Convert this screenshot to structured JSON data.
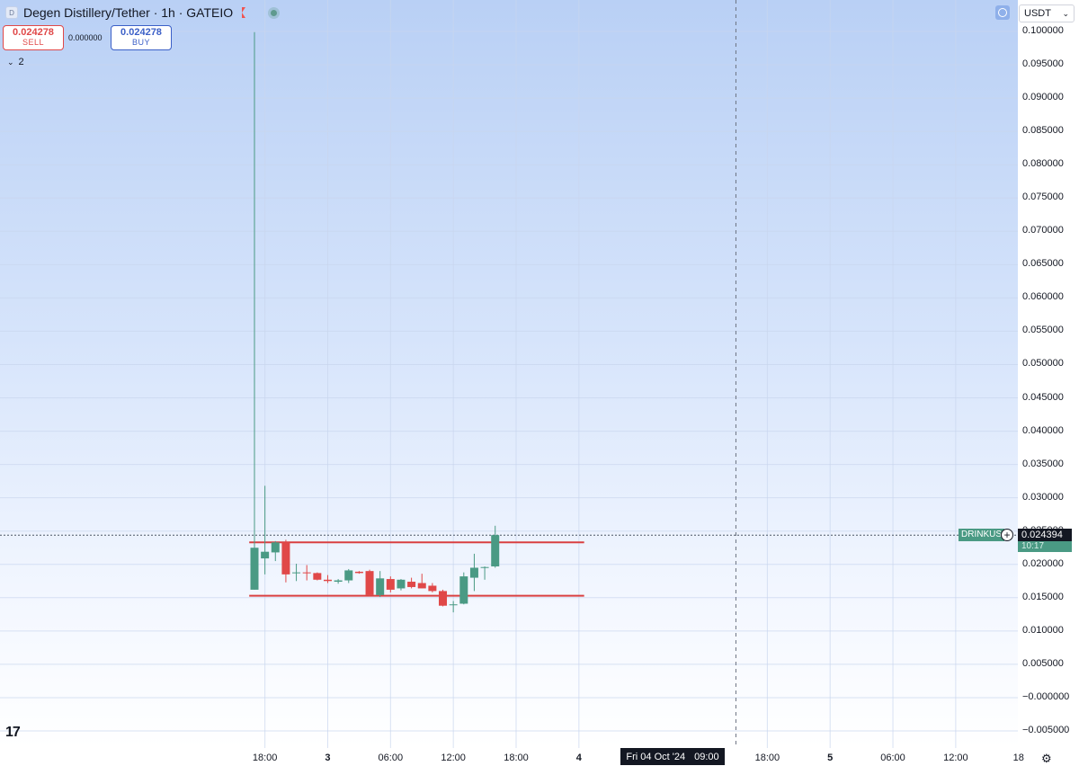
{
  "header": {
    "title": "Degen Distillery/Tether · 1h · GATEIO",
    "logo_letter": "D"
  },
  "trade": {
    "sell_price": "0.024278",
    "sell_label": "SELL",
    "spread": "0.000000",
    "buy_price": "0.024278",
    "buy_label": "BUY"
  },
  "indicators": {
    "collapse_count": "2"
  },
  "currency": {
    "selected": "USDT"
  },
  "last_price": {
    "symbol": "DRINKUS",
    "value": "0.024394",
    "countdown": "10:17"
  },
  "crosshair": {
    "date": "Fri 04 Oct '24",
    "time": "09:00"
  },
  "colors": {
    "up": "#4a9a84",
    "down": "#e04848",
    "line": "#d94040",
    "grid": "#c9d6ee"
  },
  "icons": [
    "tradingview-logo-icon",
    "flag-icon",
    "settings-gear-icon",
    "plus-circle-icon",
    "chevron-down-icon"
  ],
  "chart_data": {
    "type": "candlestick",
    "interval": "1h",
    "y_ticks": [
      "0.100000",
      "0.095000",
      "0.090000",
      "0.085000",
      "0.080000",
      "0.075000",
      "0.070000",
      "0.065000",
      "0.060000",
      "0.055000",
      "0.050000",
      "0.045000",
      "0.040000",
      "0.035000",
      "0.030000",
      "0.025000",
      "0.020000",
      "0.015000",
      "0.010000",
      "0.005000",
      "−0.000000",
      "−0.005000"
    ],
    "ylim": [
      -0.005,
      0.1
    ],
    "x_ticks": [
      {
        "label": "18:00",
        "bold": false,
        "slot": 5
      },
      {
        "label": "3",
        "bold": true,
        "slot": 11
      },
      {
        "label": "06:00",
        "bold": false,
        "slot": 17
      },
      {
        "label": "12:00",
        "bold": false,
        "slot": 23
      },
      {
        "label": "18:00",
        "bold": false,
        "slot": 29
      },
      {
        "label": "4",
        "bold": true,
        "slot": 35
      },
      {
        "label": "18:00",
        "bold": false,
        "slot": 53
      },
      {
        "label": "5",
        "bold": true,
        "slot": 59
      },
      {
        "label": "06:00",
        "bold": false,
        "slot": 65
      },
      {
        "label": "12:00",
        "bold": false,
        "slot": 71
      },
      {
        "label": "18",
        "bold": false,
        "slot": 77
      }
    ],
    "crosshair_slot": 50,
    "slot_count": 80,
    "candles": [
      {
        "slot": 4,
        "open": 0.0162,
        "high": 0.0999,
        "low": 0.0162,
        "close": 0.0225
      },
      {
        "slot": 5,
        "open": 0.0209,
        "high": 0.0318,
        "low": 0.0185,
        "close": 0.0219
      },
      {
        "slot": 6,
        "open": 0.0218,
        "high": 0.0235,
        "low": 0.0205,
        "close": 0.0233
      },
      {
        "slot": 7,
        "open": 0.0233,
        "high": 0.0237,
        "low": 0.0173,
        "close": 0.0185
      },
      {
        "slot": 8,
        "open": 0.0187,
        "high": 0.0201,
        "low": 0.0175,
        "close": 0.0188
      },
      {
        "slot": 9,
        "open": 0.0188,
        "high": 0.0199,
        "low": 0.0176,
        "close": 0.0187
      },
      {
        "slot": 10,
        "open": 0.0187,
        "high": 0.0188,
        "low": 0.0176,
        "close": 0.0177
      },
      {
        "slot": 11,
        "open": 0.0177,
        "high": 0.0184,
        "low": 0.0172,
        "close": 0.0175
      },
      {
        "slot": 12,
        "open": 0.0174,
        "high": 0.0178,
        "low": 0.0171,
        "close": 0.0176
      },
      {
        "slot": 13,
        "open": 0.0176,
        "high": 0.0193,
        "low": 0.0172,
        "close": 0.0191
      },
      {
        "slot": 14,
        "open": 0.0189,
        "high": 0.019,
        "low": 0.0186,
        "close": 0.0187
      },
      {
        "slot": 15,
        "open": 0.019,
        "high": 0.0192,
        "low": 0.0152,
        "close": 0.0154
      },
      {
        "slot": 16,
        "open": 0.0154,
        "high": 0.019,
        "low": 0.0151,
        "close": 0.0179
      },
      {
        "slot": 17,
        "open": 0.0178,
        "high": 0.0182,
        "low": 0.0158,
        "close": 0.0162
      },
      {
        "slot": 18,
        "open": 0.0164,
        "high": 0.0178,
        "low": 0.0161,
        "close": 0.0177
      },
      {
        "slot": 19,
        "open": 0.0174,
        "high": 0.018,
        "low": 0.0164,
        "close": 0.0166
      },
      {
        "slot": 20,
        "open": 0.0172,
        "high": 0.0186,
        "low": 0.0164,
        "close": 0.0164
      },
      {
        "slot": 21,
        "open": 0.0168,
        "high": 0.0172,
        "low": 0.0158,
        "close": 0.016
      },
      {
        "slot": 22,
        "open": 0.016,
        "high": 0.0162,
        "low": 0.0137,
        "close": 0.0138
      },
      {
        "slot": 23,
        "open": 0.0139,
        "high": 0.0145,
        "low": 0.0128,
        "close": 0.014
      },
      {
        "slot": 24,
        "open": 0.0141,
        "high": 0.0188,
        "low": 0.014,
        "close": 0.0182
      },
      {
        "slot": 25,
        "open": 0.018,
        "high": 0.0216,
        "low": 0.016,
        "close": 0.0195
      },
      {
        "slot": 26,
        "open": 0.0195,
        "high": 0.0197,
        "low": 0.0177,
        "close": 0.0196
      },
      {
        "slot": 27,
        "open": 0.0197,
        "high": 0.0258,
        "low": 0.0195,
        "close": 0.0244
      }
    ],
    "horizontal_lines": [
      {
        "price": 0.0233,
        "from_slot": 3.5,
        "to_slot": 35.5
      },
      {
        "price": 0.0153,
        "from_slot": 3.5,
        "to_slot": 35.5
      }
    ]
  }
}
